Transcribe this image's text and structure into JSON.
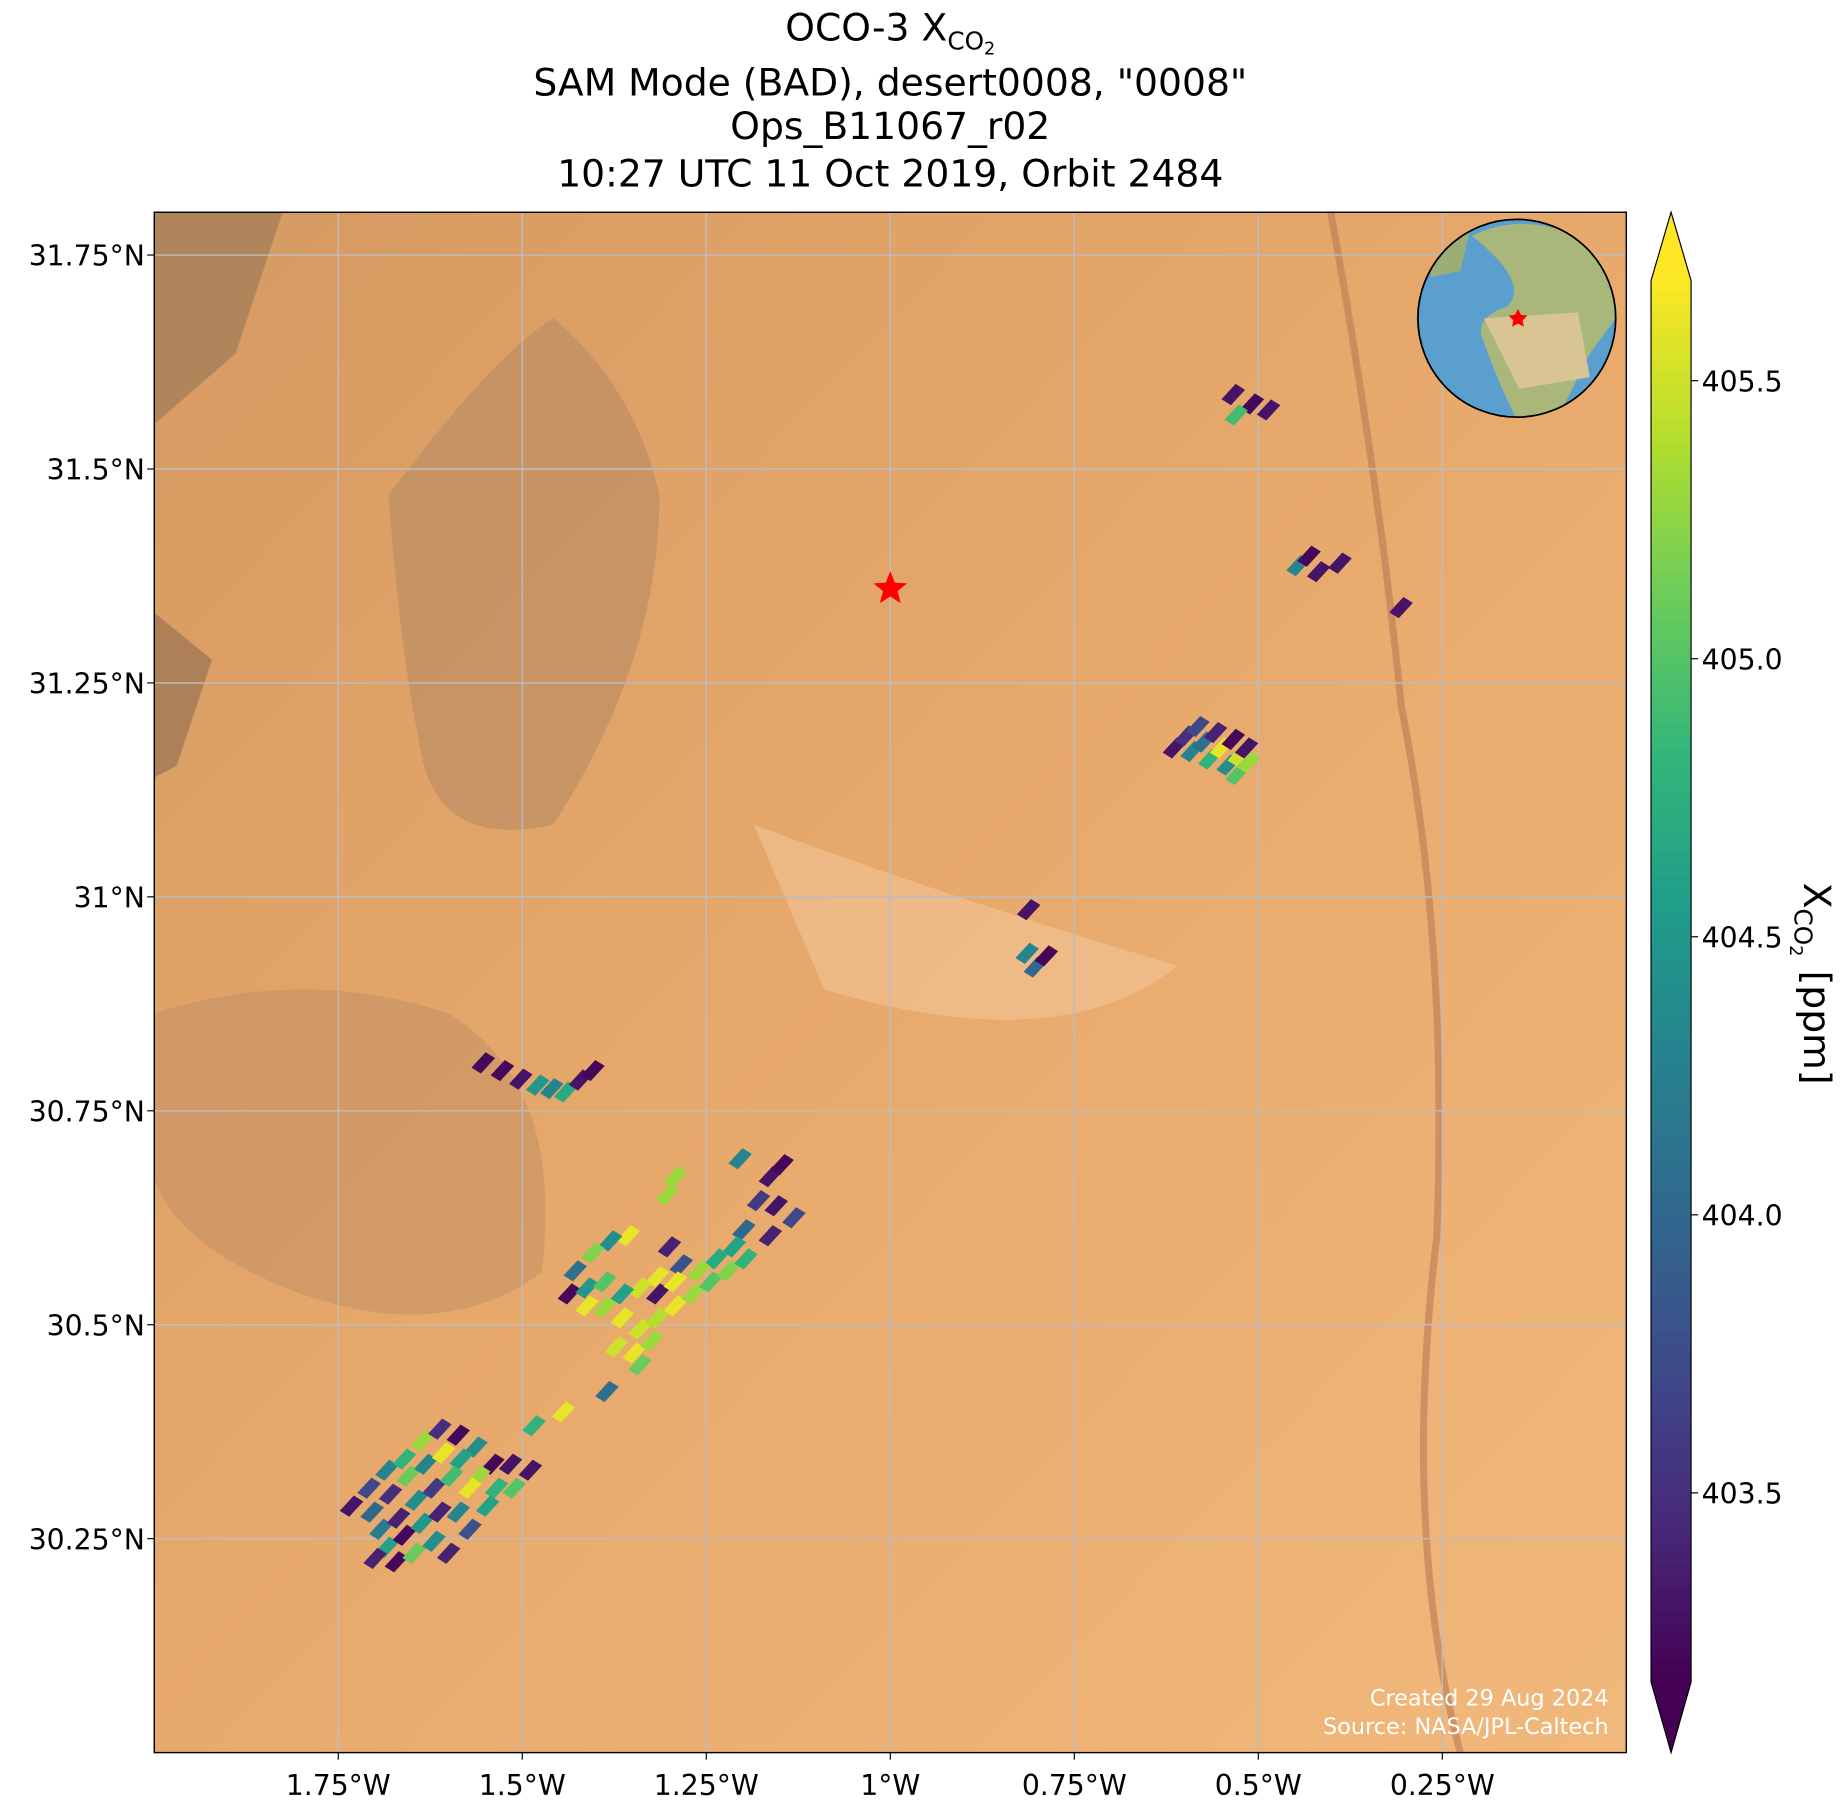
{
  "chart_data": {
    "type": "map",
    "title": {
      "main": "OCO-3 X",
      "sub": "CO",
      "subsub": "2"
    },
    "subtitle": [
      "SAM Mode (BAD), desert0008, \"0008\"",
      "Ops_B11067_r02",
      "10:27 UTC 11 Oct 2019, Orbit 2484"
    ],
    "xlim": [
      -2.0,
      0.0
    ],
    "ylim": [
      30.0,
      31.8
    ],
    "xticks": [
      {
        "value": -1.75,
        "label": "1.75°W"
      },
      {
        "value": -1.5,
        "label": "1.5°W"
      },
      {
        "value": -1.25,
        "label": "1.25°W"
      },
      {
        "value": -1,
        "label": "1°W"
      },
      {
        "value": -0.75,
        "label": "0.75°W"
      },
      {
        "value": -0.5,
        "label": "0.5°W"
      },
      {
        "value": -0.25,
        "label": "0.25°W"
      }
    ],
    "yticks": [
      {
        "value": 30.25,
        "label": "30.25°N"
      },
      {
        "value": 30.5,
        "label": "30.5°N"
      },
      {
        "value": 30.75,
        "label": "30.75°N"
      },
      {
        "value": 31,
        "label": "31°N"
      },
      {
        "value": 31.25,
        "label": "31.25°N"
      },
      {
        "value": 31.5,
        "label": "31.5°N"
      },
      {
        "value": 31.75,
        "label": "31.75°N"
      }
    ],
    "grid": true,
    "site": {
      "x": -1.0,
      "y": 31.36,
      "color": "#ff0000"
    },
    "colormap": "viridis",
    "clim": [
      403.16,
      405.68
    ],
    "cticks": [
      403.5,
      {
        "value": 404,
        "label": "404.0"
      },
      404.5,
      {
        "value": 405,
        "label": "405.0"
      },
      405.5
    ],
    "colorbar_label": {
      "main": "X",
      "sub": "CO",
      "subsub": "2",
      "unit": "[ppm]"
    },
    "credits": [
      "Created 29 Aug 2024",
      "Source: NASA/JPL-Caltech"
    ],
    "soundings": {
      "x": [
        -0.534,
        -0.508,
        -0.53,
        -0.486,
        -0.446,
        -0.431,
        -0.418,
        -0.389,
        -0.306,
        -0.614,
        -0.598,
        -0.582,
        -0.59,
        -0.574,
        -0.558,
        -0.566,
        -0.55,
        -0.534,
        -0.541,
        -0.526,
        -0.516,
        -0.529,
        -0.513,
        -0.812,
        -0.814,
        -0.803,
        -0.788,
        -1.553,
        -1.527,
        -1.502,
        -1.479,
        -1.46,
        -1.441,
        -1.421,
        -1.404,
        -1.204,
        -1.292,
        -1.303,
        -1.163,
        -1.147,
        -1.179,
        -1.155,
        -1.131,
        -1.199,
        -1.163,
        -1.212,
        -1.236,
        -1.26,
        -1.284,
        -1.3,
        -1.316,
        -1.34,
        -1.364,
        -1.356,
        -1.38,
        -1.404,
        -1.428,
        -1.436,
        -1.412,
        -1.388,
        -1.412,
        -1.388,
        -1.364,
        -1.34,
        -1.316,
        -1.292,
        -1.268,
        -1.244,
        -1.22,
        -1.196,
        -1.348,
        -1.324,
        -1.372,
        -1.34,
        -1.316,
        -1.292,
        -1.484,
        -1.444,
        -1.385,
        -1.732,
        -1.708,
        -1.684,
        -1.66,
        -1.636,
        -1.612,
        -1.587,
        -1.563,
        -1.54,
        -1.516,
        -1.489,
        -1.704,
        -1.679,
        -1.655,
        -1.631,
        -1.607,
        -1.583,
        -1.559,
        -1.535,
        -1.511,
        -1.692,
        -1.668,
        -1.644,
        -1.62,
        -1.596,
        -1.571,
        -1.547,
        -1.684,
        -1.66,
        -1.636,
        -1.612,
        -1.587,
        -1.571,
        -1.7,
        -1.671,
        -1.647,
        -1.62,
        -1.6
      ],
      "y": [
        31.587,
        31.576,
        31.563,
        31.569,
        31.387,
        31.398,
        31.38,
        31.39,
        31.338,
        31.174,
        31.188,
        31.199,
        31.17,
        31.181,
        31.192,
        31.161,
        31.174,
        31.184,
        31.154,
        31.165,
        31.174,
        31.143,
        31.157,
        30.985,
        30.934,
        30.918,
        30.931,
        30.806,
        30.797,
        30.787,
        30.78,
        30.776,
        30.772,
        30.786,
        30.797,
        30.694,
        30.673,
        30.652,
        30.673,
        30.687,
        30.645,
        30.639,
        30.625,
        30.611,
        30.604,
        30.591,
        30.577,
        30.563,
        30.57,
        30.591,
        30.556,
        30.543,
        30.536,
        30.604,
        30.598,
        30.584,
        30.563,
        30.536,
        30.543,
        30.55,
        30.522,
        30.52,
        30.508,
        30.495,
        30.508,
        30.522,
        30.536,
        30.55,
        30.563,
        30.577,
        30.467,
        30.481,
        30.474,
        30.453,
        30.536,
        30.55,
        30.382,
        30.398,
        30.422,
        30.288,
        30.309,
        30.33,
        30.343,
        30.364,
        30.378,
        30.371,
        30.357,
        30.337,
        30.337,
        30.33,
        30.281,
        30.302,
        30.323,
        30.337,
        30.35,
        30.343,
        30.323,
        30.309,
        30.309,
        30.261,
        30.274,
        30.295,
        30.309,
        30.323,
        30.309,
        30.288,
        30.24,
        30.254,
        30.268,
        30.281,
        30.281,
        30.261,
        30.227,
        30.223,
        30.233,
        30.247,
        30.233
      ],
      "values": [
        403.3,
        403.2,
        404.9,
        403.3,
        404.3,
        403.2,
        403.3,
        403.3,
        403.3,
        403.3,
        403.5,
        403.7,
        404.3,
        404.1,
        403.4,
        404.8,
        405.6,
        403.2,
        404.4,
        405.5,
        403.3,
        405.0,
        405.3,
        403.3,
        404.3,
        404.0,
        403.2,
        403.2,
        403.2,
        403.3,
        404.5,
        404.3,
        404.7,
        403.3,
        403.2,
        404.3,
        405.3,
        405.3,
        403.3,
        403.2,
        403.6,
        403.3,
        403.7,
        404.0,
        403.4,
        404.6,
        404.7,
        405.3,
        403.8,
        403.4,
        405.6,
        405.5,
        404.6,
        405.6,
        404.4,
        405.2,
        404.1,
        403.2,
        404.5,
        405.0,
        405.6,
        405.3,
        405.6,
        405.5,
        405.4,
        405.6,
        405.3,
        405.0,
        405.2,
        404.8,
        405.6,
        405.3,
        405.5,
        405.1,
        403.3,
        405.6,
        404.8,
        405.6,
        404.1,
        403.3,
        403.7,
        404.3,
        404.8,
        405.3,
        403.5,
        403.2,
        404.4,
        403.2,
        403.3,
        403.3,
        404.0,
        403.5,
        405.1,
        404.3,
        405.6,
        404.6,
        405.3,
        404.8,
        405.0,
        404.2,
        403.4,
        404.4,
        403.6,
        404.9,
        405.6,
        404.6,
        404.6,
        403.2,
        404.5,
        403.4,
        404.3,
        403.8,
        403.4,
        403.2,
        405.1,
        404.4,
        403.4
      ]
    }
  }
}
